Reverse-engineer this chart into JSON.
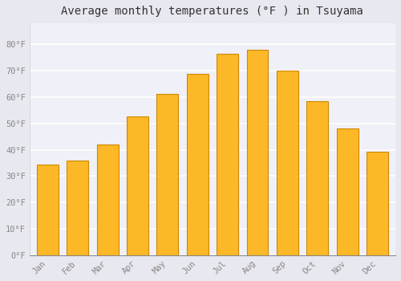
{
  "title": "Average monthly temperatures (°F ) in Tsuyama",
  "months": [
    "Jan",
    "Feb",
    "Mar",
    "Apr",
    "May",
    "Jun",
    "Jul",
    "Aug",
    "Sep",
    "Oct",
    "Nov",
    "Dec"
  ],
  "values": [
    34.5,
    35.8,
    42.0,
    52.7,
    61.2,
    68.9,
    76.5,
    78.1,
    70.0,
    58.6,
    48.2,
    39.2
  ],
  "bar_color": "#FDB827",
  "bar_edge_color": "#CC8800",
  "background_color": "#f0f0f8",
  "plot_bg_color": "#f0f0f8",
  "grid_color": "#ffffff",
  "ylim": [
    0,
    88
  ],
  "yticks": [
    0,
    10,
    20,
    30,
    40,
    50,
    60,
    70,
    80
  ],
  "ytick_labels": [
    "0°F",
    "10°F",
    "20°F",
    "30°F",
    "40°F",
    "50°F",
    "60°F",
    "70°F",
    "80°F"
  ],
  "tick_color": "#888888",
  "tick_fontsize": 7.5,
  "title_fontsize": 10,
  "title_fontfamily": "monospace",
  "outer_bg": "#e8e8f0"
}
